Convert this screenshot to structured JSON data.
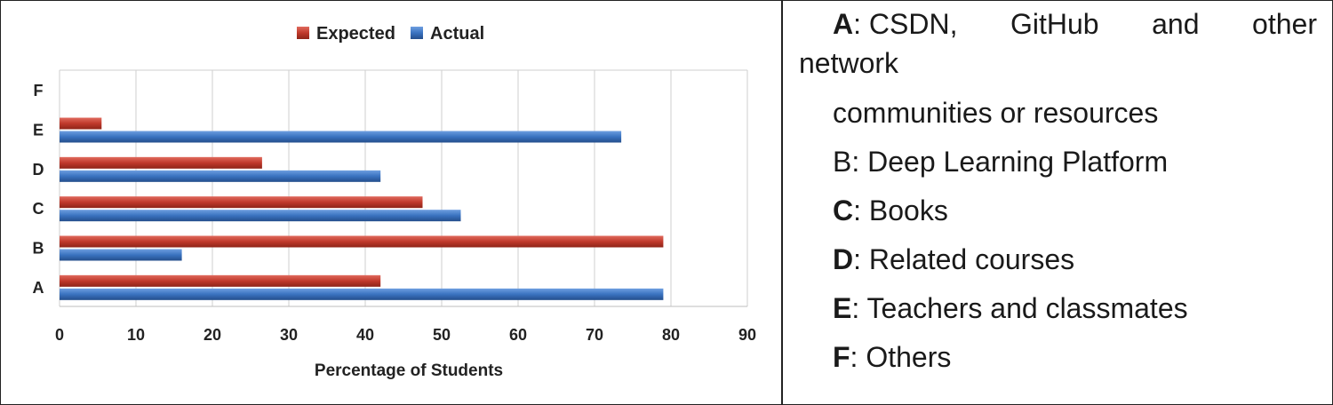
{
  "chart_data": {
    "type": "bar",
    "orientation": "horizontal",
    "categories": [
      "A",
      "B",
      "C",
      "D",
      "E",
      "F"
    ],
    "series": [
      {
        "name": "Expected",
        "color": "#c0392b",
        "values": [
          42,
          79,
          47.5,
          26.5,
          5.5,
          0
        ]
      },
      {
        "name": "Actual",
        "color": "#3a73c0",
        "values": [
          79,
          16,
          52.5,
          42,
          73.5,
          0
        ]
      }
    ],
    "xlabel": "Percentage of Students",
    "ylabel": "",
    "xlim": [
      0,
      90
    ],
    "xticks": [
      0,
      10,
      20,
      30,
      40,
      50,
      60,
      70,
      80,
      90
    ],
    "grid": true,
    "legend_position": "top"
  },
  "key": [
    {
      "letter": "A",
      "text": ": CSDN, GitHub and other"
    },
    {
      "letter": "",
      "text": "network"
    },
    {
      "letter": "",
      "text": "communities or resources"
    },
    {
      "letter": "",
      "text": "B: Deep Learning Platform"
    },
    {
      "letter": "C",
      "text": ": Books"
    },
    {
      "letter": "D",
      "text": ": Related courses"
    },
    {
      "letter": "E",
      "text": ": Teachers and classmates"
    },
    {
      "letter": "F",
      "text": ": Others"
    }
  ]
}
